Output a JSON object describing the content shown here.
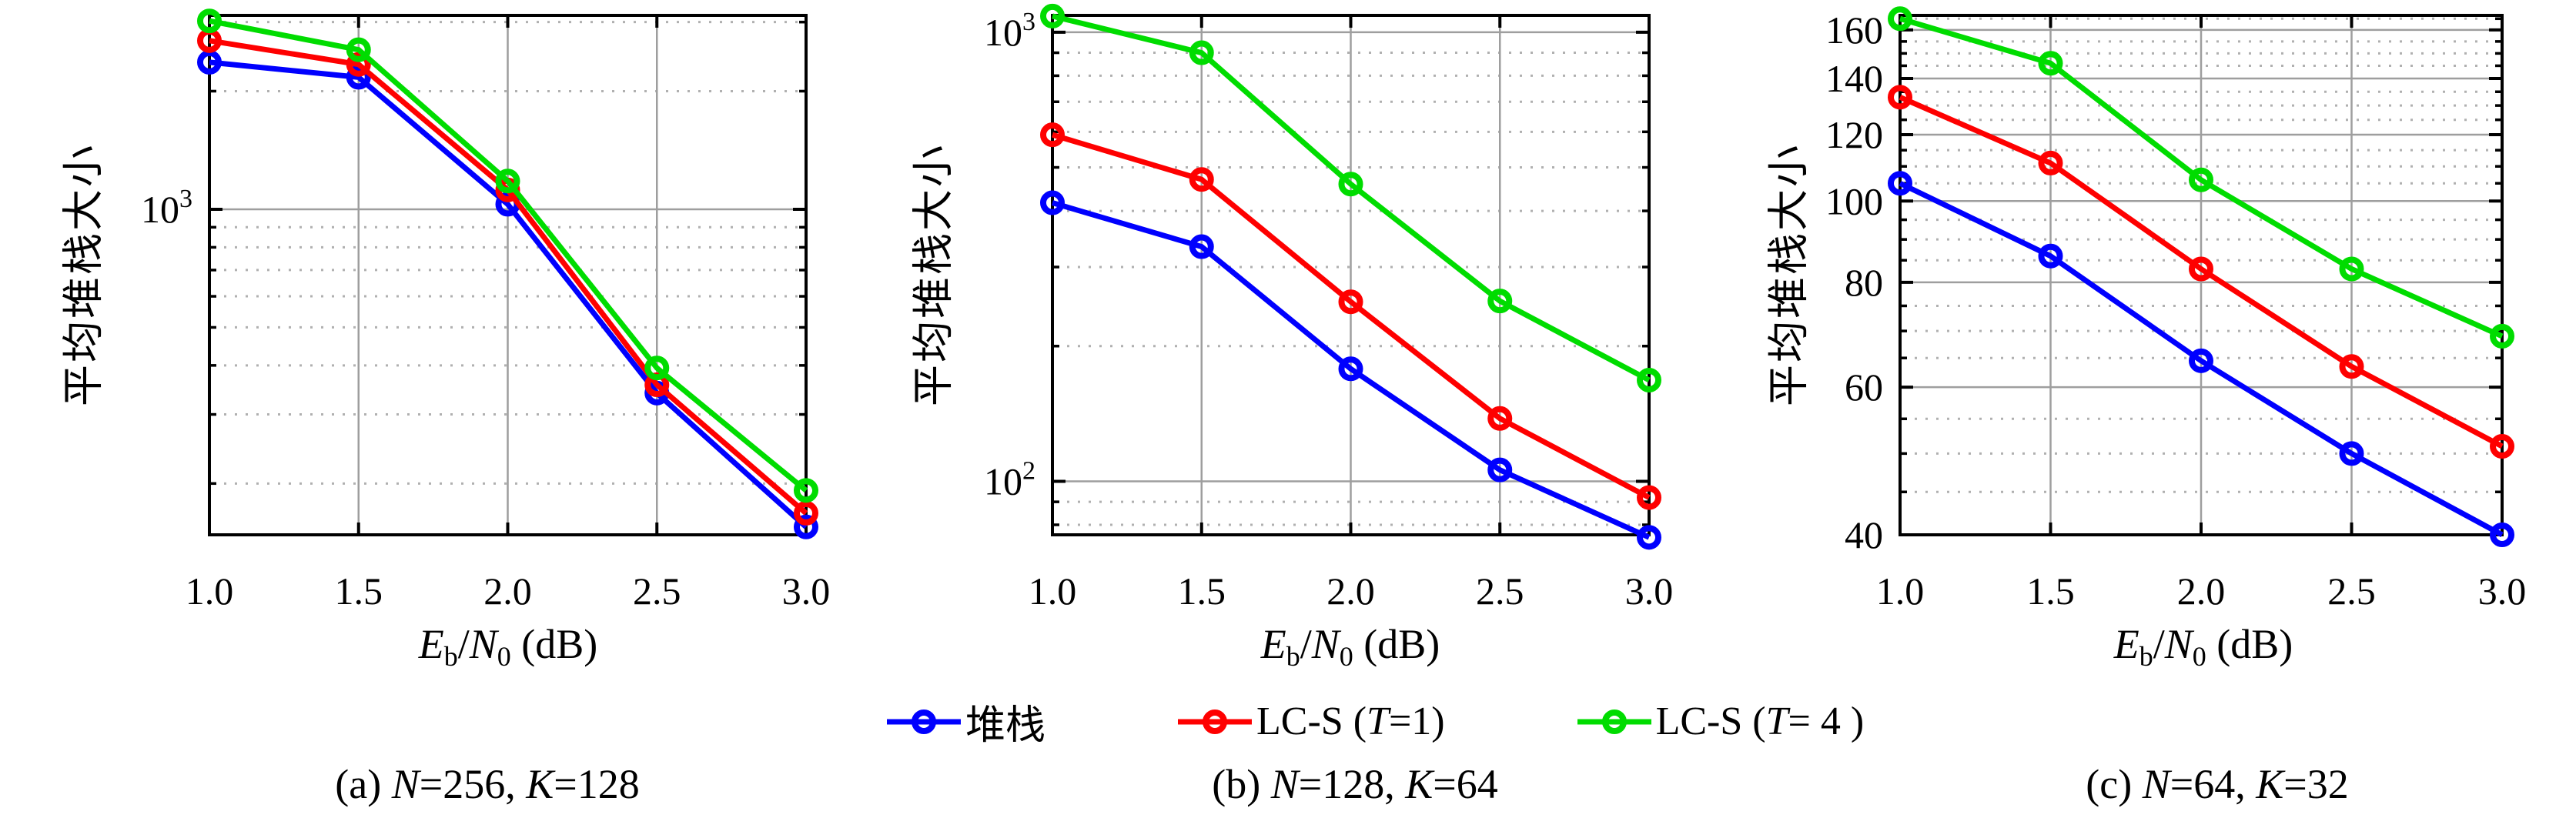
{
  "figure": {
    "ylabel": "平均堆栈大小",
    "background": "#ffffff",
    "axis_color": "#000000",
    "grid_major_color": "#9e9e9e",
    "grid_minor_color": "#b0b0b0"
  },
  "xlabel": {
    "e": "E",
    "b": "b",
    "slash": "/",
    "n": "N",
    "zero": "0",
    "unit": " (dB)"
  },
  "captions": [
    {
      "p1": "(a) ",
      "n": "N",
      "p2": "=256, ",
      "k": "K",
      "p3": "=128"
    },
    {
      "p1": "(b) ",
      "n": "N",
      "p2": "=128, ",
      "k": "K",
      "p3": "=64"
    },
    {
      "p1": "(c) ",
      "n": "N",
      "p2": "=64, ",
      "k": "K",
      "p3": "=32"
    }
  ],
  "legend": {
    "items": [
      {
        "pre": "堆栈",
        "t": "",
        "post": "",
        "color": "#0000fe"
      },
      {
        "pre": "LC-S (",
        "t": "T",
        "post": "=1)",
        "color": "#fe0000"
      },
      {
        "pre": "LC-S (",
        "t": "T",
        "post": "= 4 )",
        "color": "#00dc00"
      }
    ]
  },
  "chart_data": [
    {
      "type": "line",
      "title": "(a) N=256, K=128",
      "xlabel": "Eb/N0 (dB)",
      "ylabel": "平均堆栈大小",
      "x": [
        1.0,
        1.5,
        2.0,
        2.5,
        3.0
      ],
      "xtick_labels": [
        "1.0",
        "1.5",
        "2.0",
        "2.5",
        "3.0"
      ],
      "yscale": "log",
      "ylim": [
        148,
        3120
      ],
      "ymajor": [
        {
          "value": 1000,
          "label": "10^3"
        }
      ],
      "yminor": [
        3000,
        2000,
        900,
        800,
        700,
        600,
        500,
        400,
        300,
        200
      ],
      "series": [
        {
          "name": "堆栈",
          "color": "#0000fe",
          "values": [
            2370,
            2170,
            1030,
            340,
            155
          ]
        },
        {
          "name": "LC-S (T=1)",
          "color": "#fe0000",
          "values": [
            2690,
            2340,
            1120,
            357,
            168
          ]
        },
        {
          "name": "LC-S (T= 4 )",
          "color": "#00dc00",
          "values": [
            3020,
            2550,
            1180,
            394,
            192
          ]
        }
      ],
      "legend_position": "none",
      "grid": true
    },
    {
      "type": "line",
      "title": "(b) N=128, K=64",
      "xlabel": "Eb/N0 (dB)",
      "ylabel": "平均堆栈大小",
      "x": [
        1.0,
        1.5,
        2.0,
        2.5,
        3.0
      ],
      "xtick_labels": [
        "1.0",
        "1.5",
        "2.0",
        "2.5",
        "3.0"
      ],
      "yscale": "log",
      "ylim": [
        76,
        1090
      ],
      "ymajor": [
        {
          "value": 1000,
          "label": "10^3"
        },
        {
          "value": 100,
          "label": "10^2"
        }
      ],
      "yminor": [
        900,
        800,
        700,
        600,
        500,
        400,
        300,
        200,
        90,
        80
      ],
      "series": [
        {
          "name": "堆栈",
          "color": "#0000fe",
          "values": [
            417,
            333,
            178,
            106,
            75
          ]
        },
        {
          "name": "LC-S (T=1)",
          "color": "#fe0000",
          "values": [
            591,
            470,
            251,
            138,
            92
          ]
        },
        {
          "name": "LC-S (T= 4 )",
          "color": "#00dc00",
          "values": [
            1086,
            900,
            459,
            252,
            168
          ]
        }
      ],
      "legend_position": "below",
      "grid": true
    },
    {
      "type": "line",
      "title": "(c) N=64, K=32",
      "xlabel": "Eb/N0 (dB)",
      "ylabel": "平均堆栈大小",
      "x": [
        1.0,
        1.5,
        2.0,
        2.5,
        3.0
      ],
      "xtick_labels": [
        "1.0",
        "1.5",
        "2.0",
        "2.5",
        "3.0"
      ],
      "yscale": "log",
      "ylim": [
        40,
        166.5
      ],
      "ymajor": [
        {
          "value": 160,
          "label": "160"
        },
        {
          "value": 140,
          "label": "140"
        },
        {
          "value": 120,
          "label": "120"
        },
        {
          "value": 100,
          "label": "100"
        },
        {
          "value": 80,
          "label": "80"
        },
        {
          "value": 60,
          "label": "60"
        },
        {
          "value": 40,
          "label": "40"
        }
      ],
      "yminor": [
        165,
        155,
        150,
        145,
        135,
        130,
        125,
        115,
        110,
        105,
        95,
        90,
        85,
        75,
        70,
        65,
        55,
        50,
        45
      ],
      "series": [
        {
          "name": "堆栈",
          "color": "#0000fe",
          "values": [
            105,
            86,
            64.5,
            50,
            40
          ]
        },
        {
          "name": "LC-S (T=1)",
          "color": "#fe0000",
          "values": [
            133,
            111,
            83,
            63.5,
            51
          ]
        },
        {
          "name": "LC-S (T= 4 )",
          "color": "#00dc00",
          "values": [
            165,
            146,
            106,
            83,
            69
          ]
        }
      ],
      "legend_position": "none",
      "grid": true
    }
  ]
}
